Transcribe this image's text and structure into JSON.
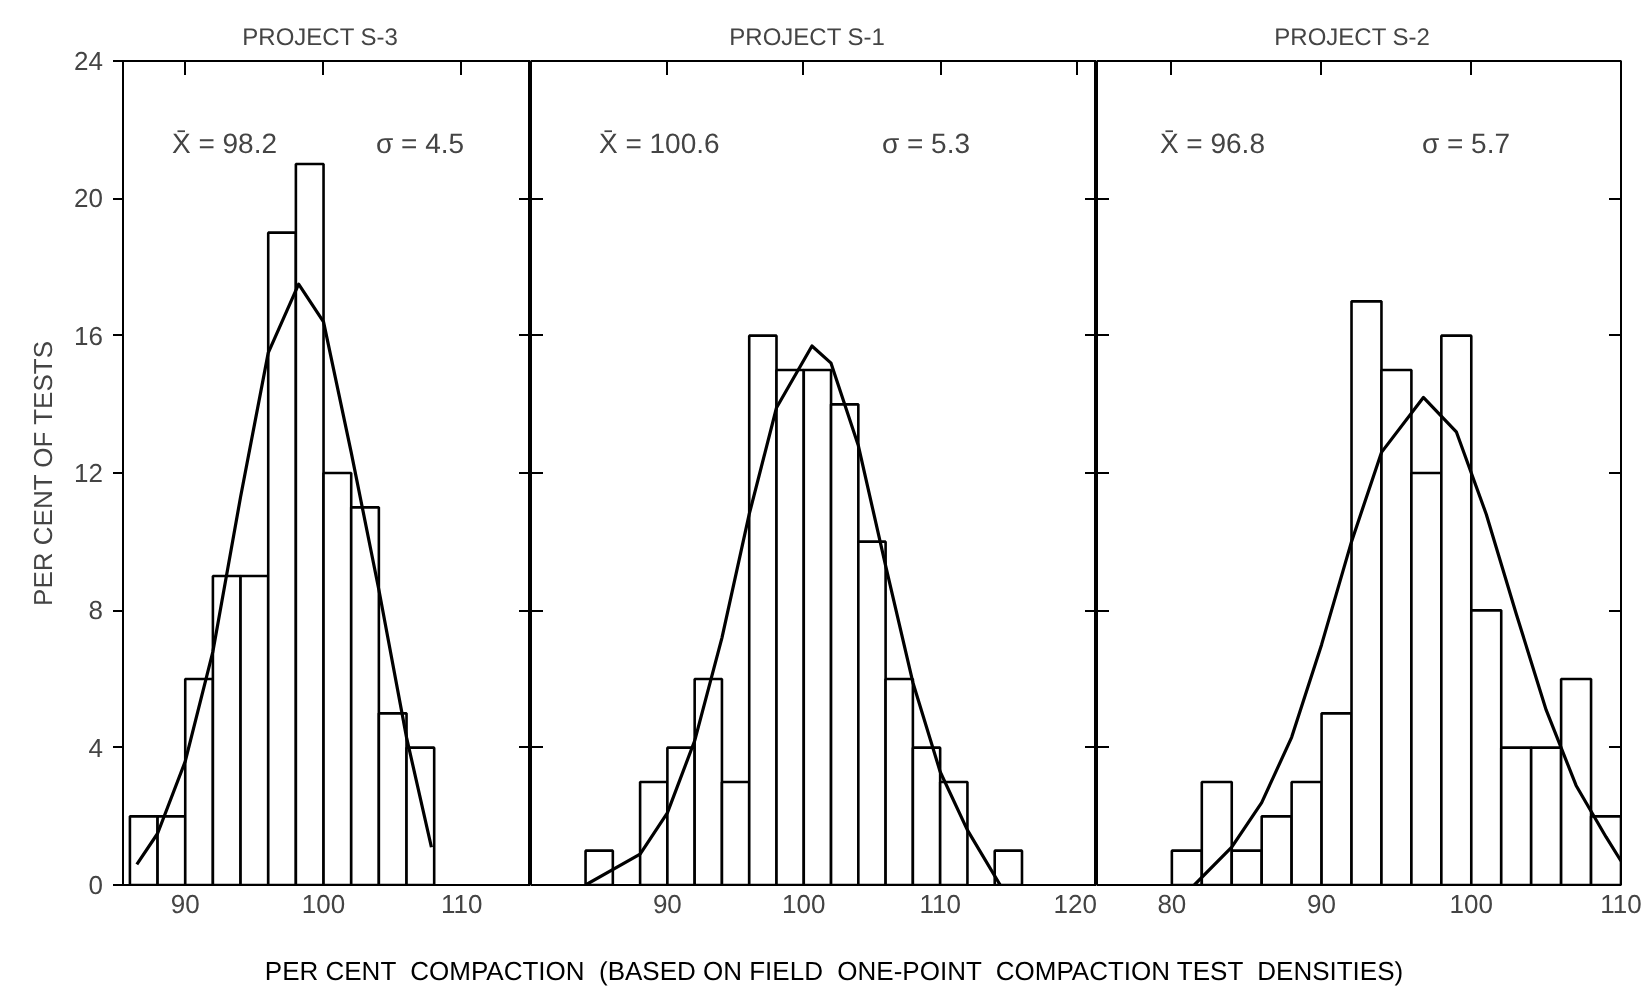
{
  "chart_data": [
    {
      "type": "histogram",
      "title": "PROJECT   S-3",
      "ylabel": "PER CENT OF TESTS",
      "xlim": [
        85.5,
        115
      ],
      "ylim": [
        0,
        24
      ],
      "xticks": [
        90,
        100,
        110
      ],
      "yticks": [
        0,
        4,
        8,
        12,
        16,
        20,
        24
      ],
      "annotations": [
        "X̄ = 98.2",
        "σ = 4.5"
      ],
      "series": [
        {
          "color": "#ffffff",
          "bins": [
            86,
            88,
            90,
            92,
            94,
            96,
            98,
            100,
            102,
            104,
            106,
            108
          ],
          "values": [
            2,
            2,
            6,
            9,
            9,
            19,
            21,
            12,
            11,
            5,
            4
          ]
        },
        {
          "type": "line",
          "color": "#000000",
          "x": [
            86.5,
            88,
            90,
            92,
            94,
            96,
            98.2,
            100,
            102,
            104,
            106,
            107.8
          ],
          "values": [
            0.6,
            1.5,
            3.6,
            6.8,
            11.3,
            15.5,
            17.5,
            16.4,
            12.6,
            8.6,
            4.3,
            1.1
          ]
        }
      ]
    },
    {
      "type": "histogram",
      "title": "PROJECT   S-1",
      "xlabel": "PER CENT  COMPACTION  (BASED ON FIELD  ONE-POINT  COMPACTION TEST  DENSITIES)",
      "xlim": [
        80,
        121.5
      ],
      "ylim": [
        0,
        24
      ],
      "xticks": [
        90,
        100,
        110,
        120
      ],
      "yticks": [
        0,
        4,
        8,
        12,
        16,
        20,
        24
      ],
      "tick_labels": "x",
      "annotations": [
        "X̄ = 100.6",
        "σ = 5.3"
      ],
      "series": [
        {
          "color": "#ffffff",
          "bins": [
            84,
            86,
            88,
            90,
            92,
            94,
            96,
            98,
            100,
            102,
            104,
            106,
            108,
            110,
            112,
            114,
            116
          ],
          "values": [
            1,
            0,
            3,
            4,
            6,
            3,
            16,
            15,
            15,
            14,
            10,
            6,
            4,
            3,
            0,
            1
          ]
        },
        {
          "type": "line",
          "color": "#000000",
          "x": [
            84,
            88,
            90,
            92,
            94,
            96,
            98,
            100.6,
            102,
            104,
            106,
            108,
            110,
            112,
            114.4
          ],
          "values": [
            0,
            0.9,
            2.1,
            4.2,
            7.2,
            10.8,
            13.9,
            15.7,
            15.2,
            12.8,
            9.3,
            5.9,
            3.3,
            1.6,
            0
          ]
        }
      ]
    },
    {
      "type": "histogram",
      "title": "PROJECT   S-2",
      "xlim": [
        75,
        110
      ],
      "ylim": [
        0,
        24
      ],
      "xticks": [
        80,
        90,
        100,
        110
      ],
      "yticks": [
        0,
        4,
        8,
        12,
        16,
        20,
        24
      ],
      "tick_labels": "x",
      "annotations": [
        "X̄ = 96.8",
        "σ = 5.7"
      ],
      "series": [
        {
          "color": "#ffffff",
          "bins": [
            80,
            82,
            84,
            86,
            88,
            90,
            92,
            94,
            96,
            98,
            100,
            102,
            104,
            106,
            108,
            110
          ],
          "values": [
            1,
            3,
            1,
            2,
            3,
            5,
            17,
            15,
            12,
            16,
            8,
            4,
            4,
            6,
            2
          ]
        },
        {
          "type": "line",
          "color": "#000000",
          "x": [
            81.5,
            84,
            86,
            88,
            90,
            92,
            94,
            96.8,
            99,
            101,
            103,
            105,
            107,
            109,
            110
          ],
          "values": [
            0,
            1.1,
            2.4,
            4.3,
            7.0,
            10.0,
            12.6,
            14.2,
            13.2,
            10.8,
            7.9,
            5.1,
            2.9,
            1.4,
            0.7
          ]
        }
      ]
    }
  ]
}
